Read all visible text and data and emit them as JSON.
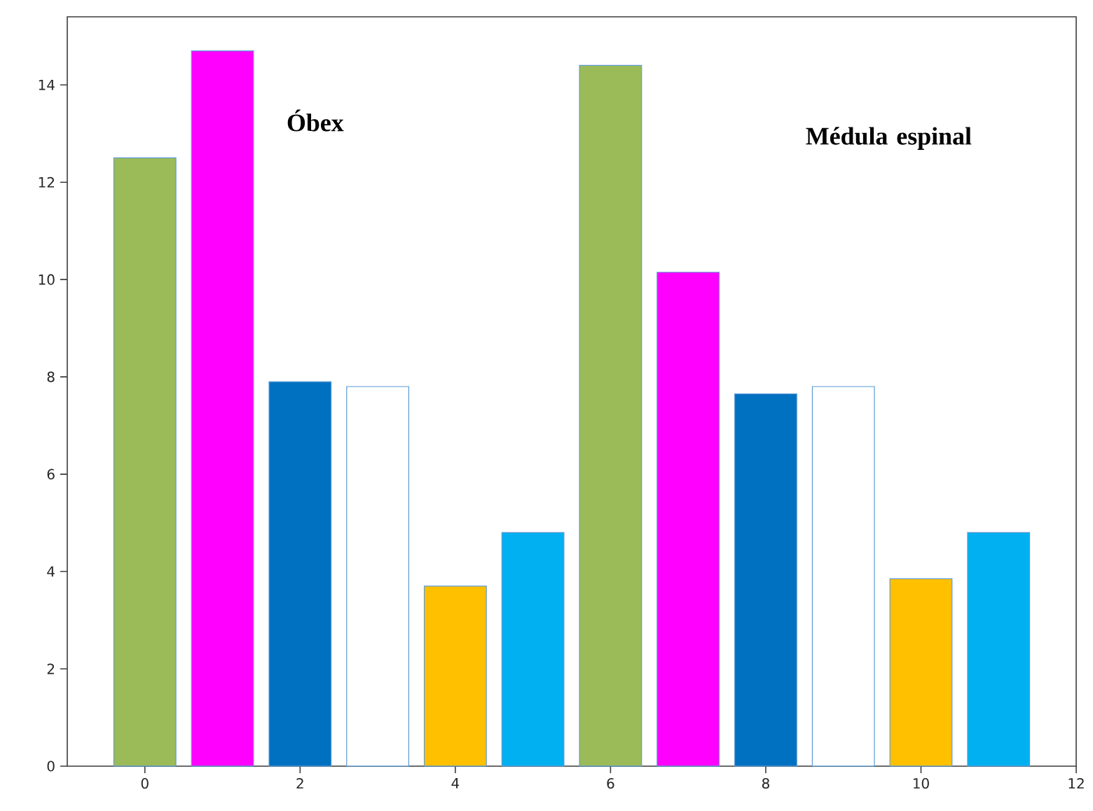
{
  "chart_data": {
    "type": "bar",
    "x": [
      0,
      1,
      2,
      3,
      4,
      5,
      6,
      7,
      8,
      9,
      10,
      11
    ],
    "values": [
      12.5,
      14.7,
      7.9,
      7.8,
      3.7,
      4.8,
      14.4,
      10.15,
      7.65,
      7.8,
      3.85,
      4.8
    ],
    "colors": [
      "#9bbb59",
      "#ff00ff",
      "#0070c0",
      "#ffffff",
      "#ffc000",
      "#00b0f0",
      "#9bbb59",
      "#ff00ff",
      "#0070c0",
      "#ffffff",
      "#ffc000",
      "#00b0f0"
    ],
    "xlim": [
      -1,
      12
    ],
    "xticks": [
      0,
      2,
      4,
      6,
      8,
      10,
      12
    ],
    "ylim": [
      0,
      15.4
    ],
    "yticks": [
      0,
      2,
      4,
      6,
      8,
      10,
      12,
      14
    ],
    "annotations": [
      "Óbex",
      "Médula espinal"
    ]
  }
}
